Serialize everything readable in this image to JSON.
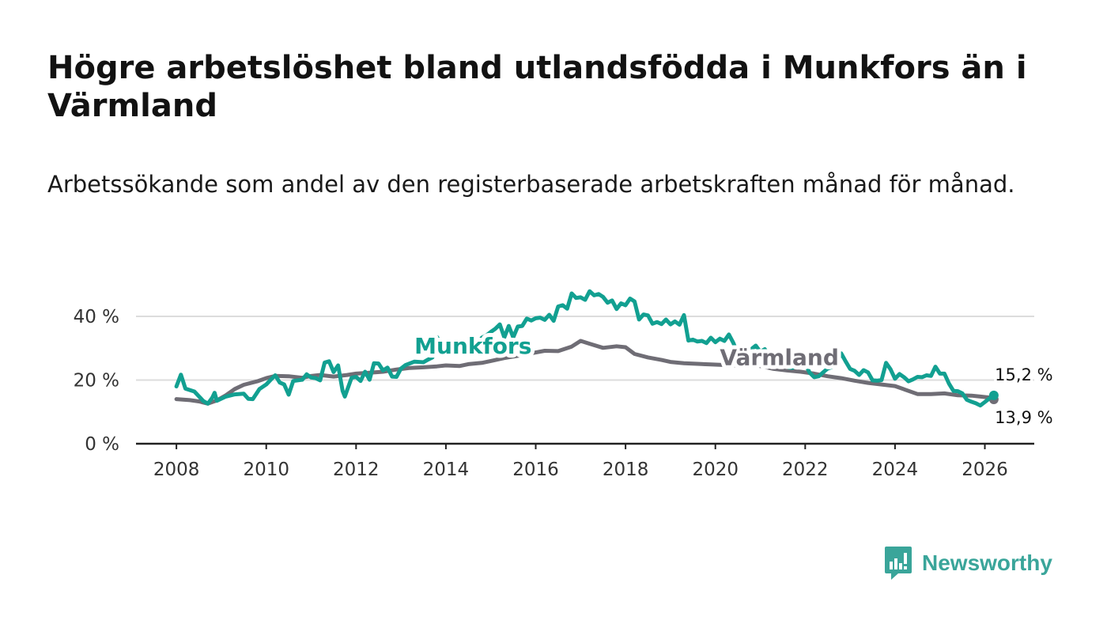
{
  "title": "Högre arbetslöshet bland utlandsfödda i Munkfors än i Värmland",
  "subtitle": "Arbetssökande som andel av den registerbaserade arbetskraften månad för månad.",
  "brand": {
    "name": "Newsworthy",
    "logo_icon": "bar-chart-speech-bubble-icon",
    "color": "#3aa59a"
  },
  "chart_data": {
    "type": "line",
    "title": "Högre arbetslöshet bland utlandsfödda i Munkfors än i Värmland",
    "xlabel": "",
    "ylabel": "",
    "x_unit": "year",
    "xlim": [
      2007.1,
      2027.1
    ],
    "ylim": [
      0,
      40
    ],
    "x_ticks": [
      {
        "value": 2008,
        "label": "2008"
      },
      {
        "value": 2010,
        "label": "2010"
      },
      {
        "value": 2012,
        "label": "2012"
      },
      {
        "value": 2014,
        "label": "2014"
      },
      {
        "value": 2016,
        "label": "2016"
      },
      {
        "value": 2018,
        "label": "2018"
      },
      {
        "value": 2020,
        "label": "2020"
      },
      {
        "value": 2022,
        "label": "2022"
      },
      {
        "value": 2024,
        "label": "2024"
      },
      {
        "value": 2026,
        "label": "2026"
      }
    ],
    "y_ticks": [
      {
        "value": 0,
        "label": "0 %"
      },
      {
        "value": 20,
        "label": "20 %"
      },
      {
        "value": 40,
        "label": "40 %"
      }
    ],
    "grid": true,
    "series": [
      {
        "name": "Värmland",
        "label": "Värmland",
        "color": "#6f6d75",
        "end_label": "13,9 %",
        "last_value": 13.9,
        "points": [
          [
            2008.0,
            14.0
          ],
          [
            2008.3,
            13.7
          ],
          [
            2008.5,
            13.3
          ],
          [
            2008.7,
            12.6
          ],
          [
            2008.9,
            13.6
          ],
          [
            2009.1,
            15.2
          ],
          [
            2009.3,
            17.2
          ],
          [
            2009.5,
            18.5
          ],
          [
            2009.8,
            19.6
          ],
          [
            2010.0,
            20.6
          ],
          [
            2010.2,
            21.3
          ],
          [
            2010.5,
            21.2
          ],
          [
            2010.8,
            20.7
          ],
          [
            2011.0,
            21.3
          ],
          [
            2011.2,
            21.6
          ],
          [
            2011.5,
            21.1
          ],
          [
            2011.8,
            21.6
          ],
          [
            2012.0,
            22.0
          ],
          [
            2012.3,
            22.3
          ],
          [
            2012.6,
            22.6
          ],
          [
            2012.9,
            23.3
          ],
          [
            2013.2,
            23.8
          ],
          [
            2013.5,
            24.0
          ],
          [
            2013.8,
            24.3
          ],
          [
            2014.0,
            24.6
          ],
          [
            2014.3,
            24.4
          ],
          [
            2014.5,
            25.0
          ],
          [
            2014.8,
            25.4
          ],
          [
            2015.0,
            26.0
          ],
          [
            2015.3,
            26.9
          ],
          [
            2015.6,
            27.6
          ],
          [
            2015.9,
            28.4
          ],
          [
            2016.2,
            29.2
          ],
          [
            2016.5,
            29.1
          ],
          [
            2016.8,
            30.5
          ],
          [
            2017.0,
            32.3
          ],
          [
            2017.2,
            31.4
          ],
          [
            2017.5,
            30.1
          ],
          [
            2017.8,
            30.6
          ],
          [
            2018.0,
            30.3
          ],
          [
            2018.2,
            28.2
          ],
          [
            2018.5,
            27.1
          ],
          [
            2018.8,
            26.3
          ],
          [
            2019.0,
            25.7
          ],
          [
            2019.3,
            25.3
          ],
          [
            2019.6,
            25.1
          ],
          [
            2019.9,
            24.9
          ],
          [
            2020.1,
            24.8
          ],
          [
            2020.4,
            24.6
          ],
          [
            2020.7,
            24.7
          ],
          [
            2021.0,
            24.4
          ],
          [
            2021.3,
            23.5
          ],
          [
            2021.6,
            23.0
          ],
          [
            2021.9,
            22.6
          ],
          [
            2022.2,
            22.0
          ],
          [
            2022.5,
            21.2
          ],
          [
            2022.8,
            20.6
          ],
          [
            2023.1,
            19.8
          ],
          [
            2023.4,
            19.1
          ],
          [
            2023.7,
            18.6
          ],
          [
            2024.0,
            18.1
          ],
          [
            2024.2,
            17.1
          ],
          [
            2024.5,
            15.6
          ],
          [
            2024.8,
            15.6
          ],
          [
            2025.1,
            15.8
          ],
          [
            2025.4,
            15.2
          ],
          [
            2025.7,
            15.1
          ],
          [
            2025.9,
            14.8
          ],
          [
            2026.1,
            14.5
          ],
          [
            2026.2,
            13.9
          ]
        ]
      },
      {
        "name": "Munkfors",
        "label": "Munkfors",
        "color": "#12a091",
        "end_label": "15,2 %",
        "last_value": 15.2,
        "points": [
          [
            2008.0,
            18.0
          ],
          [
            2008.1,
            21.7
          ],
          [
            2008.2,
            17.3
          ],
          [
            2008.4,
            16.4
          ],
          [
            2008.6,
            13.4
          ],
          [
            2008.7,
            12.6
          ],
          [
            2008.8,
            14.5
          ],
          [
            2008.85,
            16.0
          ],
          [
            2008.9,
            13.5
          ],
          [
            2009.1,
            14.8
          ],
          [
            2009.3,
            15.5
          ],
          [
            2009.5,
            15.7
          ],
          [
            2009.6,
            14.1
          ],
          [
            2009.7,
            14.0
          ],
          [
            2009.85,
            17.2
          ],
          [
            2010.0,
            18.6
          ],
          [
            2010.1,
            20.1
          ],
          [
            2010.2,
            21.5
          ],
          [
            2010.3,
            19.2
          ],
          [
            2010.4,
            18.6
          ],
          [
            2010.5,
            15.4
          ],
          [
            2010.6,
            19.7
          ],
          [
            2010.8,
            20.1
          ],
          [
            2010.9,
            21.8
          ],
          [
            2011.0,
            20.8
          ],
          [
            2011.1,
            20.6
          ],
          [
            2011.2,
            19.9
          ],
          [
            2011.3,
            25.5
          ],
          [
            2011.4,
            25.9
          ],
          [
            2011.5,
            22.5
          ],
          [
            2011.6,
            24.6
          ],
          [
            2011.7,
            16.6
          ],
          [
            2011.75,
            14.8
          ],
          [
            2011.9,
            20.7
          ],
          [
            2012.0,
            21.0
          ],
          [
            2012.1,
            19.7
          ],
          [
            2012.2,
            22.6
          ],
          [
            2012.3,
            20.1
          ],
          [
            2012.4,
            25.3
          ],
          [
            2012.5,
            25.2
          ],
          [
            2012.6,
            23.0
          ],
          [
            2012.7,
            23.9
          ],
          [
            2012.8,
            21.1
          ],
          [
            2012.9,
            21.0
          ],
          [
            2013.0,
            23.6
          ],
          [
            2013.1,
            24.7
          ],
          [
            2013.3,
            25.8
          ],
          [
            2013.5,
            25.6
          ],
          [
            2013.6,
            26.4
          ],
          [
            2013.7,
            27.1
          ],
          [
            2013.8,
            33.5
          ],
          [
            2013.9,
            31.2
          ],
          [
            2014.0,
            29.2
          ],
          [
            2014.2,
            29.4
          ],
          [
            2014.4,
            29.6
          ],
          [
            2014.6,
            30.2
          ],
          [
            2014.7,
            31.2
          ],
          [
            2014.8,
            33.3
          ],
          [
            2014.9,
            34.0
          ],
          [
            2015.0,
            35.1
          ],
          [
            2015.1,
            36.1
          ],
          [
            2015.2,
            37.5
          ],
          [
            2015.3,
            33.4
          ],
          [
            2015.4,
            37.0
          ],
          [
            2015.5,
            33.4
          ],
          [
            2015.6,
            36.8
          ],
          [
            2015.7,
            37.0
          ],
          [
            2015.8,
            39.3
          ],
          [
            2015.9,
            38.7
          ],
          [
            2016.0,
            39.4
          ],
          [
            2016.1,
            39.6
          ],
          [
            2016.2,
            38.9
          ],
          [
            2016.3,
            40.5
          ],
          [
            2016.4,
            38.6
          ],
          [
            2016.5,
            43.1
          ],
          [
            2016.6,
            43.5
          ],
          [
            2016.7,
            42.4
          ],
          [
            2016.8,
            47.2
          ],
          [
            2016.9,
            45.8
          ],
          [
            2017.0,
            46.0
          ],
          [
            2017.1,
            45.2
          ],
          [
            2017.2,
            47.9
          ],
          [
            2017.3,
            46.6
          ],
          [
            2017.4,
            47.0
          ],
          [
            2017.5,
            46.1
          ],
          [
            2017.6,
            44.3
          ],
          [
            2017.7,
            45.0
          ],
          [
            2017.8,
            42.3
          ],
          [
            2017.9,
            44.1
          ],
          [
            2018.0,
            43.5
          ],
          [
            2018.1,
            45.6
          ],
          [
            2018.2,
            44.7
          ],
          [
            2018.3,
            39.0
          ],
          [
            2018.4,
            40.6
          ],
          [
            2018.5,
            40.3
          ],
          [
            2018.6,
            37.7
          ],
          [
            2018.7,
            38.2
          ],
          [
            2018.8,
            37.6
          ],
          [
            2018.9,
            39.0
          ],
          [
            2019.0,
            37.5
          ],
          [
            2019.1,
            38.4
          ],
          [
            2019.2,
            37.4
          ],
          [
            2019.3,
            40.4
          ],
          [
            2019.4,
            32.4
          ],
          [
            2019.5,
            32.7
          ],
          [
            2019.6,
            32.1
          ],
          [
            2019.7,
            32.3
          ],
          [
            2019.8,
            31.6
          ],
          [
            2019.9,
            33.3
          ],
          [
            2020.0,
            31.9
          ],
          [
            2020.1,
            33.0
          ],
          [
            2020.2,
            32.3
          ],
          [
            2020.3,
            34.3
          ],
          [
            2020.4,
            31.7
          ],
          [
            2020.5,
            28.2
          ],
          [
            2020.6,
            27.8
          ],
          [
            2020.7,
            28.3
          ],
          [
            2020.8,
            29.7
          ],
          [
            2020.9,
            30.8
          ],
          [
            2021.0,
            28.9
          ],
          [
            2021.1,
            29.7
          ],
          [
            2021.2,
            27.7
          ],
          [
            2021.3,
            27.4
          ],
          [
            2021.4,
            28.0
          ],
          [
            2021.5,
            26.7
          ],
          [
            2021.6,
            24.1
          ],
          [
            2021.7,
            23.8
          ],
          [
            2021.8,
            24.2
          ],
          [
            2021.9,
            24.7
          ],
          [
            2022.0,
            25.1
          ],
          [
            2022.1,
            22.3
          ],
          [
            2022.2,
            20.9
          ],
          [
            2022.3,
            21.2
          ],
          [
            2022.4,
            22.4
          ],
          [
            2022.5,
            23.6
          ],
          [
            2022.6,
            24.1
          ],
          [
            2022.7,
            25.5
          ],
          [
            2022.8,
            28.4
          ],
          [
            2022.9,
            25.9
          ],
          [
            2023.0,
            23.5
          ],
          [
            2023.1,
            22.9
          ],
          [
            2023.2,
            21.6
          ],
          [
            2023.3,
            23.1
          ],
          [
            2023.4,
            22.4
          ],
          [
            2023.5,
            19.9
          ],
          [
            2023.6,
            19.8
          ],
          [
            2023.7,
            20.0
          ],
          [
            2023.8,
            25.4
          ],
          [
            2023.9,
            23.4
          ],
          [
            2024.0,
            20.4
          ],
          [
            2024.1,
            21.9
          ],
          [
            2024.2,
            20.9
          ],
          [
            2024.3,
            19.6
          ],
          [
            2024.4,
            20.2
          ],
          [
            2024.5,
            21.0
          ],
          [
            2024.6,
            20.9
          ],
          [
            2024.7,
            21.5
          ],
          [
            2024.8,
            21.3
          ],
          [
            2024.9,
            24.2
          ],
          [
            2025.0,
            22.0
          ],
          [
            2025.1,
            22.0
          ],
          [
            2025.2,
            18.9
          ],
          [
            2025.3,
            16.6
          ],
          [
            2025.4,
            16.5
          ],
          [
            2025.5,
            15.8
          ],
          [
            2025.6,
            13.8
          ],
          [
            2025.7,
            13.2
          ],
          [
            2025.8,
            12.7
          ],
          [
            2025.9,
            12.0
          ],
          [
            2026.0,
            13.1
          ],
          [
            2026.1,
            14.2
          ],
          [
            2026.2,
            15.2
          ]
        ]
      }
    ],
    "annotations": [
      {
        "text": "Munkfors",
        "series": "Munkfors",
        "x": 2013.3,
        "y": 28.3
      },
      {
        "text": "Värmland",
        "series": "Värmland",
        "x": 2020.1,
        "y": 24.7
      }
    ]
  }
}
